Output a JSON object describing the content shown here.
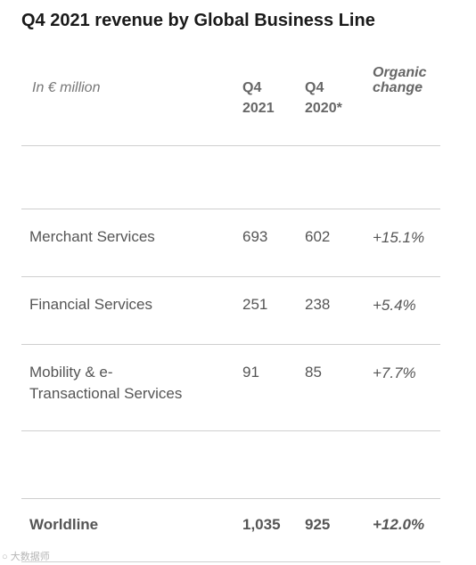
{
  "title": "Q4 2021 revenue by Global Business Line",
  "table": {
    "unit_label": "In € million",
    "columns": {
      "q4_2021_line1": "Q4",
      "q4_2021_line2": "2021",
      "q4_2020_line1": "Q4",
      "q4_2020_line2": "2020*",
      "organic_line1": "Organic",
      "organic_line2": "change"
    },
    "rows": [
      {
        "label": "Merchant Services",
        "q4_2021": "693",
        "q4_2020": "602",
        "organic": "+15.1%"
      },
      {
        "label": "Financial Services",
        "q4_2021": "251",
        "q4_2020": "238",
        "organic": "+5.4%"
      },
      {
        "label_line1": "Mobility & e-",
        "label_line2": "Transactional Services",
        "q4_2021": "91",
        "q4_2020": "85",
        "organic": "+7.7%"
      }
    ],
    "total": {
      "label": "Worldline",
      "q4_2021": "1,035",
      "q4_2020": "925",
      "organic": "+12.0%"
    }
  },
  "watermark": "大数据师"
}
